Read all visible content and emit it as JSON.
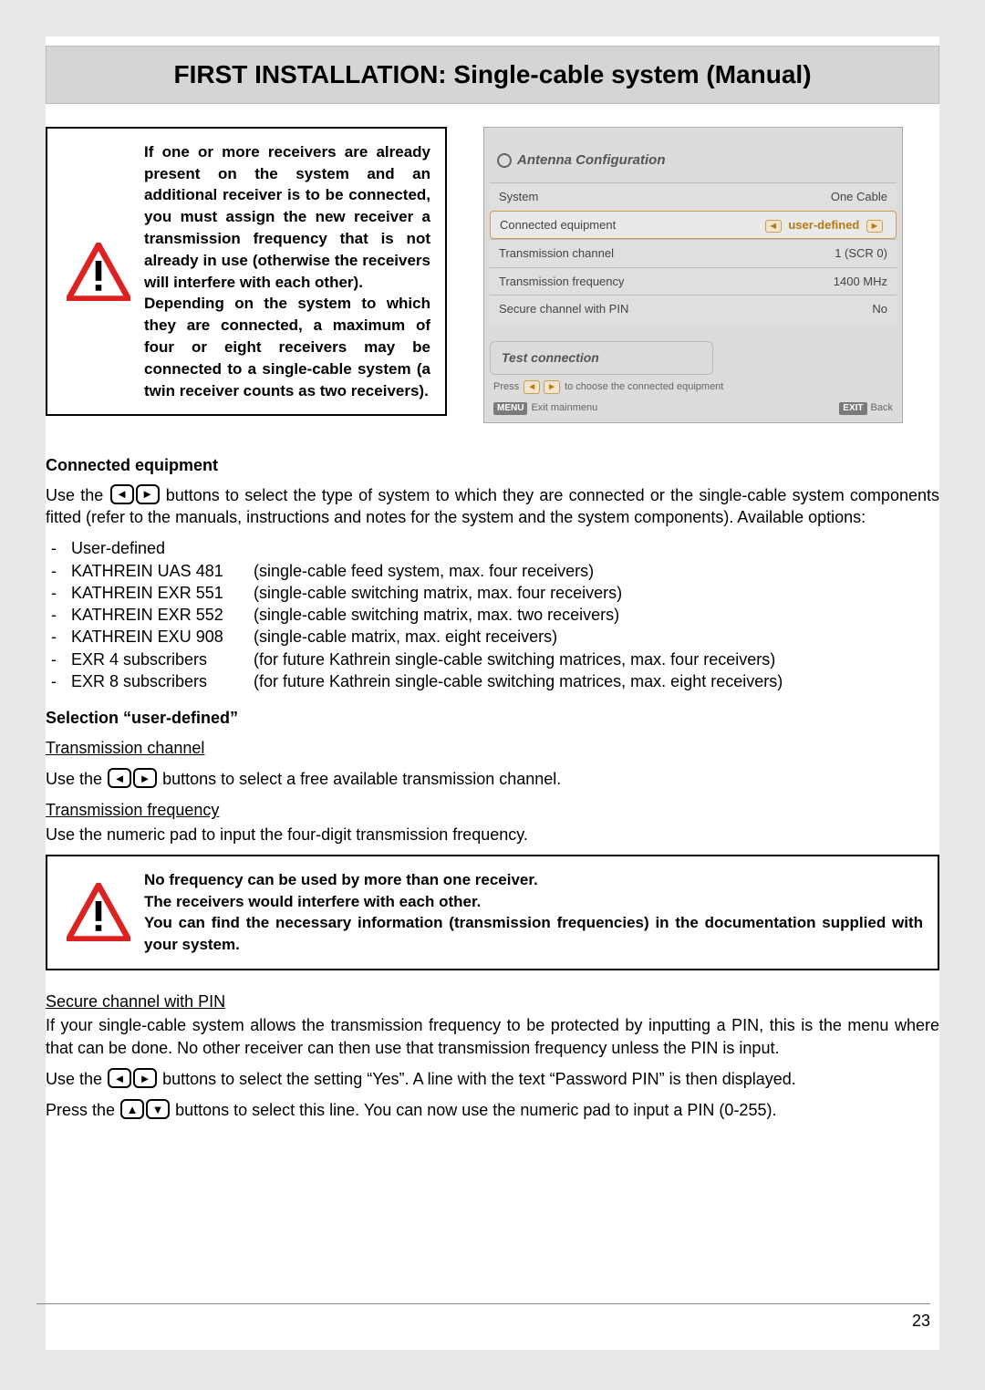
{
  "title": "FIRST INSTALLATION: Single-cable system (Manual)",
  "page_number": "23",
  "warning1": {
    "text": "If one or more receivers are already present on the system and an additional receiver is to be connected, you must assign the new receiver a transmission frequency that is not already in use (otherwise the receivers will interfere with each other).\nDepending on the system to which they are connected, a maximum of four or eight receivers may be connected to a single-cable system (a twin receiver counts as two receivers)."
  },
  "ui": {
    "title": "Antenna Configuration",
    "rows": [
      {
        "label": "System",
        "value": "One Cable",
        "selected": false
      },
      {
        "label": "Connected equipment",
        "value": "user-defined",
        "selected": true,
        "arrows": true
      },
      {
        "label": "Transmission channel",
        "value": "1  (SCR 0)",
        "selected": false
      },
      {
        "label": "Transmission frequency",
        "value": "1400 MHz",
        "selected": false
      },
      {
        "label": "Secure channel with PIN",
        "value": "No",
        "selected": false
      }
    ],
    "test_label": "Test connection",
    "hint_prefix": "Press",
    "hint_suffix": "to choose the connected equipment",
    "footer_left_tag": "MENU",
    "footer_left": "Exit mainmenu",
    "footer_right_tag": "EXIT",
    "footer_right": "Back"
  },
  "sec_connected": {
    "heading": "Connected equipment",
    "intro_a": "Use the ",
    "intro_b": " buttons to select the type of system to which they are connected or the single-cable system components fitted (refer to the manuals, instructions and notes for the system and the system components). Available options:",
    "options": [
      {
        "name": "User-defined",
        "desc": ""
      },
      {
        "name": "KATHREIN UAS 481",
        "desc": "(single-cable feed system, max. four receivers)"
      },
      {
        "name": "KATHREIN EXR 551",
        "desc": "(single-cable switching matrix, max. four receivers)"
      },
      {
        "name": "KATHREIN EXR 552",
        "desc": "(single-cable switching matrix, max. two receivers)"
      },
      {
        "name": "KATHREIN EXU 908",
        "desc": "(single-cable matrix, max. eight receivers)"
      },
      {
        "name": "EXR 4 subscribers",
        "desc": "(for future Kathrein single-cable switching matrices, max. four receivers)"
      },
      {
        "name": "EXR 8 subscribers",
        "desc": "(for future Kathrein single-cable switching matrices, max. eight receivers)"
      }
    ]
  },
  "sec_userdef": {
    "heading": "Selection “user-defined”",
    "trans_channel_head": "Transmission channel",
    "trans_channel_a": "Use the ",
    "trans_channel_b": " buttons to select a free available transmission channel.",
    "trans_freq_head": "Transmission frequency",
    "trans_freq_text": "Use the numeric pad to input the four-digit transmission frequency."
  },
  "warning2": {
    "line1": "No frequency can be used by more than one receiver.",
    "line2": "The receivers would interfere with each other.",
    "line3": "You can find the necessary information (transmission frequencies) in the documentation supplied with your system."
  },
  "sec_pin": {
    "head": "Secure channel with PIN",
    "para": "If your single-cable system allows the transmission frequency to be protected by inputting a PIN, this is the menu where that can be done. No other receiver can then use that transmission frequency unless the PIN is input.",
    "line2_a": "Use the ",
    "line2_b": " buttons to select the setting “Yes”. A line with the text “Password PIN” is then displayed.",
    "line3_a": "Press the ",
    "line3_b": " buttons to select this line. You can now use the numeric pad to input a PIN (0-255)."
  },
  "glyphs": {
    "left": "◄",
    "right": "►",
    "up": "▲",
    "down": "▼"
  }
}
